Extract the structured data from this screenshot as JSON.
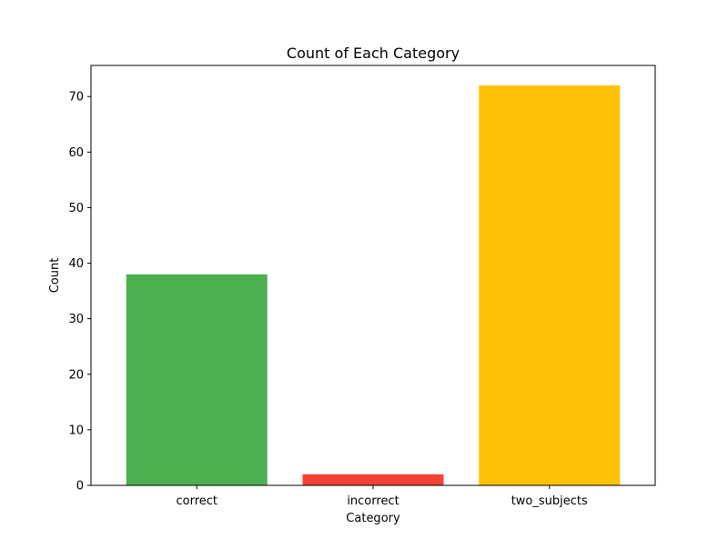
{
  "chart_data": {
    "type": "bar",
    "title": "Count of Each Category",
    "xlabel": "Category",
    "ylabel": "Count",
    "categories": [
      "correct",
      "incorrect",
      "two_subjects"
    ],
    "values": [
      38,
      2,
      72
    ],
    "colors": [
      "#4caf50",
      "#f44336",
      "#ffc107"
    ],
    "ylim": [
      0,
      75.6
    ],
    "yticks": [
      0,
      10,
      20,
      30,
      40,
      50,
      60,
      70
    ],
    "grid": false,
    "legend": "none"
  }
}
